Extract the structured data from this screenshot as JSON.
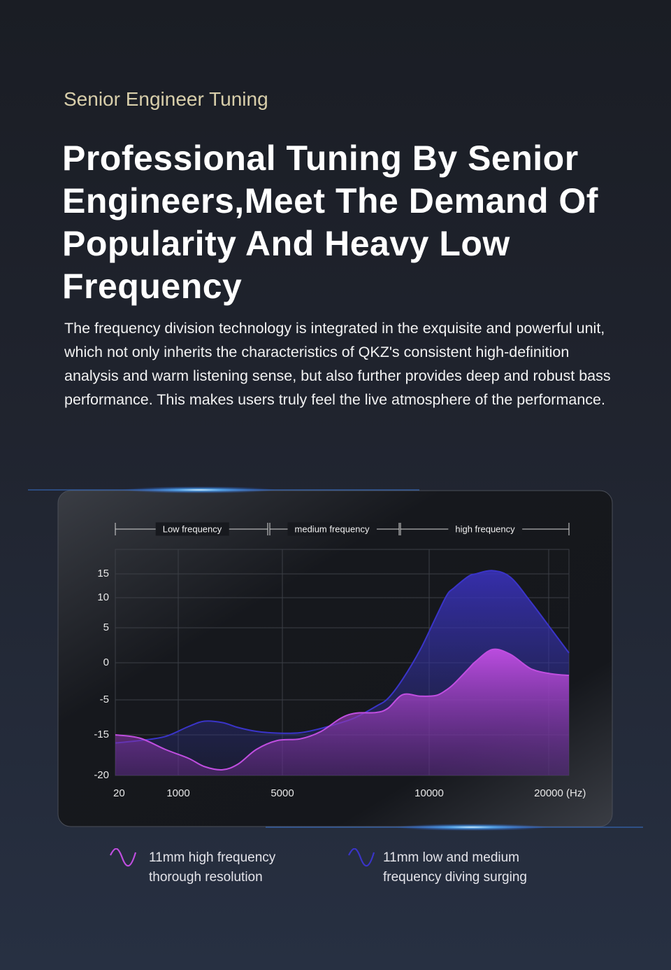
{
  "header": {
    "eyebrow": "Senior Engineer Tuning",
    "title": "Professional Tuning By Senior Engineers,Meet The Demand Of Popularity And Heavy Low Frequency",
    "body": "The frequency division technology is integrated in the exquisite and powerful unit, which not only inherits the characteristics of QKZ's consistent high-definition analysis and warm listening sense, but also further provides deep and robust bass performance. This makes users truly feel the live atmosphere of the performance."
  },
  "chart_data": {
    "type": "area",
    "annotations": [
      "Low frequency",
      "medium frequency",
      "high frequency"
    ],
    "x_label": "(Hz)",
    "x": [
      20,
      400,
      800,
      1400,
      2000,
      2700,
      3300,
      4000,
      4800,
      5600,
      6300,
      7000,
      7500,
      8200,
      8600,
      9100,
      9700,
      10600,
      11500,
      12100,
      13300,
      13900,
      15300,
      16800,
      18500,
      20300,
      22000
    ],
    "series": [
      {
        "name": "11mm low and medium frequency diving surging",
        "color": "#3a34c8",
        "values": [
          -16,
          -15.7,
          -15.2,
          -12.6,
          -11.1,
          -11.5,
          -12.9,
          -14,
          -14.5,
          -14.4,
          -13.2,
          -11.5,
          -10,
          -6.8,
          -4.8,
          -2.2,
          1.9,
          6.9,
          10.6,
          12.1,
          14.5,
          15,
          15.4,
          14.3,
          9.3,
          4.7,
          1.4
        ]
      },
      {
        "name": "11mm high frequency thorough resolution",
        "color": "#c04ee0",
        "values": [
          -15,
          -15.4,
          -16.8,
          -17.9,
          -18.9,
          -19.3,
          -18.6,
          -16.8,
          -15.7,
          -15.5,
          -14.1,
          -10.2,
          -8.8,
          -8.6,
          -7.4,
          -4.3,
          -4.5,
          -4.4,
          -3.6,
          -2.8,
          -0.8,
          0.2,
          1.9,
          1.2,
          -0.8,
          -1.5,
          -1.7
        ]
      }
    ],
    "xlim": [
      20,
      22000
    ],
    "xticks": [
      20,
      1000,
      5000,
      10000,
      20000
    ],
    "ylim": [
      -20,
      18
    ],
    "yticks": [
      -20,
      -15,
      -5,
      0,
      5,
      10,
      15
    ],
    "grid": true
  }
}
